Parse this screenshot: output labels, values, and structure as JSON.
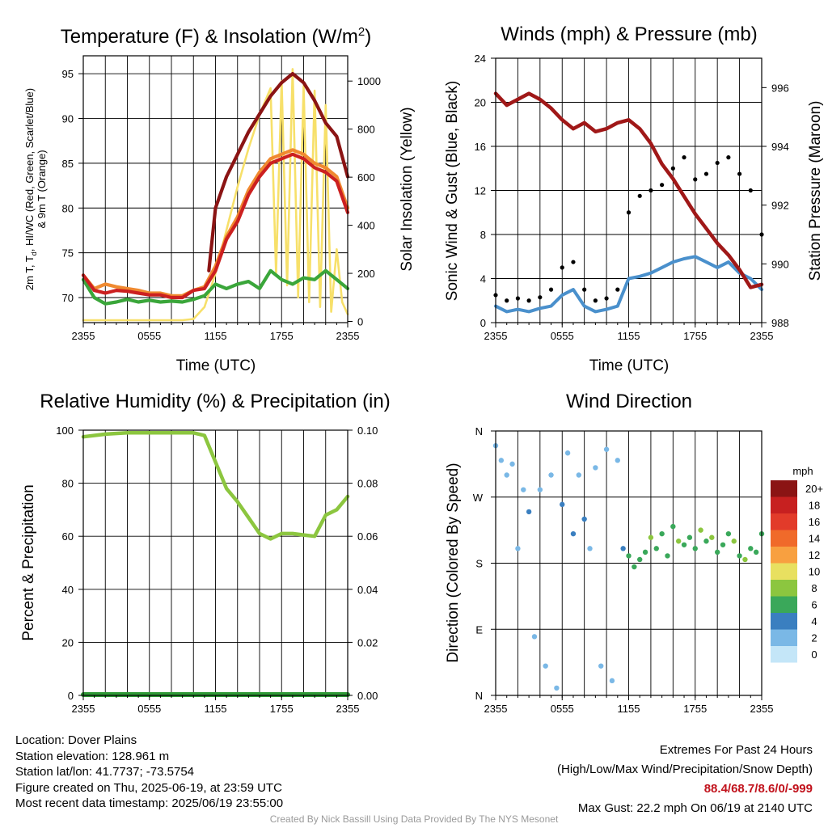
{
  "chart_data": [
    {
      "type": "line",
      "title": "Temperature (F) & Insolation (W/m²)",
      "xlabel": "Time (UTC)",
      "ylabel_left": "2m T, Td, HI/WC (Red, Green, Scarlet/Blue) & 9m T (Orange)",
      "ylabel_right": "Solar Insolation (Yellow)",
      "x_ticks": [
        "2355",
        "0555",
        "1155",
        "1755",
        "2355"
      ],
      "ylim_left": [
        67.2,
        97.0
      ],
      "yticks_left": [
        70,
        75,
        80,
        85,
        90,
        95
      ],
      "ylim_right": [
        -5,
        1105
      ],
      "yticks_right": [
        0,
        200,
        400,
        600,
        800,
        1000
      ],
      "grid": true,
      "series": [
        {
          "name": "2m T",
          "color": "#cc2020",
          "axis": "left",
          "x": [
            0,
            1,
            2,
            3,
            4,
            5,
            6,
            7,
            8,
            9,
            10,
            11,
            12,
            13,
            14,
            15,
            16,
            17,
            18,
            19,
            20,
            21,
            22,
            23,
            24
          ],
          "y": [
            72.5,
            70.8,
            70.5,
            70.8,
            70.7,
            70.5,
            70.3,
            70.3,
            70.0,
            70.0,
            70.8,
            71.0,
            73.0,
            76.5,
            78.5,
            81.5,
            83.5,
            85.0,
            85.5,
            86.0,
            85.5,
            84.5,
            84.0,
            83.0,
            79.5
          ]
        },
        {
          "name": "Td",
          "color": "#3aa63a",
          "axis": "left",
          "x": [
            0,
            1,
            2,
            3,
            4,
            5,
            6,
            7,
            8,
            9,
            10,
            11,
            12,
            13,
            14,
            15,
            16,
            17,
            18,
            19,
            20,
            21,
            22,
            23,
            24
          ],
          "y": [
            72.0,
            70.0,
            69.3,
            69.5,
            69.8,
            69.5,
            69.7,
            69.5,
            69.6,
            69.5,
            69.8,
            70.2,
            71.5,
            71.0,
            71.5,
            71.8,
            71.0,
            73.0,
            72.0,
            71.5,
            72.2,
            72.0,
            73.0,
            72.0,
            71.0
          ]
        },
        {
          "name": "HI/WC",
          "color": "#8b1414",
          "axis": "left",
          "x": [
            11.4,
            12,
            13,
            14,
            15,
            16,
            17,
            18,
            19,
            20,
            21,
            22,
            23,
            24
          ],
          "y": [
            73.0,
            80.0,
            83.5,
            86.0,
            88.5,
            90.5,
            92.5,
            94.0,
            95.0,
            94.0,
            92.0,
            89.5,
            88.0,
            83.5
          ]
        },
        {
          "name": "9m T",
          "color": "#f08a30",
          "axis": "left",
          "x": [
            0,
            1,
            2,
            3,
            4,
            5,
            6,
            7,
            8,
            9,
            10,
            11,
            12,
            13,
            14,
            15,
            16,
            17,
            18,
            19,
            20,
            21,
            22,
            23,
            24
          ],
          "y": [
            72.5,
            71.0,
            71.5,
            71.2,
            71.0,
            70.8,
            70.5,
            70.5,
            70.2,
            70.2,
            70.8,
            71.2,
            73.5,
            76.8,
            79.0,
            82.0,
            84.0,
            85.5,
            86.0,
            86.5,
            86.0,
            85.0,
            84.5,
            83.5,
            80.0
          ]
        },
        {
          "name": "Solar Insolation",
          "color": "#f7e06a",
          "axis": "right",
          "x": [
            0,
            2,
            4,
            6,
            8,
            9,
            10,
            11,
            12,
            13,
            14,
            15,
            16,
            17,
            17.5,
            18,
            18.5,
            19,
            19.5,
            20,
            20.5,
            21,
            21.5,
            22,
            22.5,
            23,
            23.5,
            24
          ],
          "y": [
            5,
            5,
            5,
            5,
            5,
            5,
            10,
            60,
            200,
            380,
            560,
            720,
            860,
            970,
            200,
            1000,
            150,
            1050,
            100,
            980,
            80,
            960,
            60,
            900,
            40,
            300,
            80,
            30
          ]
        }
      ]
    },
    {
      "type": "scatter",
      "title": "Winds (mph) & Pressure (mb)",
      "xlabel": "Time (UTC)",
      "ylabel_left": "Sonic Wind & Gust (Blue, Black)",
      "ylabel_right": "Station Pressure (Maroon)",
      "x_ticks": [
        "2355",
        "0555",
        "1155",
        "1755",
        "2355"
      ],
      "ylim_left": [
        0,
        24
      ],
      "yticks_left": [
        0,
        4,
        8,
        12,
        16,
        20,
        24
      ],
      "ylim_right": [
        988,
        997
      ],
      "yticks_right": [
        988,
        990,
        992,
        994,
        996
      ],
      "grid": true,
      "series": [
        {
          "name": "Sonic Wind",
          "color": "#4a90cc",
          "axis": "left",
          "x": [
            0,
            1,
            2,
            3,
            4,
            5,
            6,
            7,
            8,
            9,
            10,
            11,
            12,
            13,
            14,
            15,
            16,
            17,
            18,
            19,
            20,
            21,
            22,
            23,
            24
          ],
          "y": [
            1.5,
            1.0,
            1.2,
            1.0,
            1.3,
            1.5,
            2.5,
            3.0,
            1.5,
            1.0,
            1.2,
            1.5,
            4.0,
            4.2,
            4.5,
            5.0,
            5.5,
            5.8,
            6.0,
            5.5,
            5.0,
            5.5,
            4.5,
            4.0,
            3.0
          ]
        },
        {
          "name": "Gust",
          "color": "#000000",
          "axis": "left",
          "x": [
            0,
            1,
            2,
            3,
            4,
            5,
            6,
            7,
            8,
            9,
            10,
            11,
            12,
            13,
            14,
            15,
            16,
            17,
            18,
            19,
            20,
            21,
            22,
            23,
            24
          ],
          "y": [
            2.5,
            2.0,
            2.2,
            2.0,
            2.3,
            3.0,
            5.0,
            5.5,
            3.0,
            2.0,
            2.2,
            3.0,
            10.0,
            11.5,
            12.0,
            12.5,
            14.0,
            15.0,
            13.0,
            13.5,
            14.5,
            15.0,
            13.5,
            12.0,
            8.0
          ]
        },
        {
          "name": "Station Pressure",
          "color": "#a01818",
          "axis": "right",
          "x": [
            0,
            1,
            2,
            3,
            4,
            5,
            6,
            7,
            8,
            9,
            10,
            11,
            12,
            13,
            14,
            15,
            16,
            17,
            18,
            19,
            20,
            21,
            22,
            23,
            24
          ],
          "y": [
            995.8,
            995.4,
            995.6,
            995.8,
            995.6,
            995.3,
            994.9,
            994.6,
            994.8,
            994.5,
            994.6,
            994.8,
            994.9,
            994.6,
            994.1,
            993.4,
            992.9,
            992.3,
            991.7,
            991.2,
            990.7,
            990.3,
            989.8,
            989.2,
            989.3
          ]
        }
      ]
    },
    {
      "type": "line",
      "title": "Relative Humidity (%) & Precipitation (in)",
      "xlabel": "",
      "ylabel_left": "Percent & Precipitation",
      "x_ticks": [
        "2355",
        "0555",
        "1155",
        "1755",
        "2355"
      ],
      "ylim_left": [
        0,
        100
      ],
      "yticks_left": [
        0,
        20,
        40,
        60,
        80,
        100
      ],
      "ylim_right": [
        0,
        0.1
      ],
      "yticks_right": [
        "0.00",
        "0.02",
        "0.04",
        "0.06",
        "0.08",
        "0.10"
      ],
      "grid": true,
      "series": [
        {
          "name": "Relative Humidity",
          "color": "#8cc63f",
          "axis": "left",
          "x": [
            0,
            2,
            4,
            6,
            8,
            10,
            11,
            12,
            13,
            14,
            15,
            16,
            17,
            18,
            19,
            20,
            21,
            22,
            23,
            24
          ],
          "y": [
            97.5,
            98.5,
            99.0,
            99.0,
            99.0,
            99.0,
            98.0,
            88.0,
            78.0,
            73.0,
            67.0,
            61.0,
            59.0,
            61.0,
            61.0,
            60.5,
            60.0,
            68.0,
            70.0,
            75.0
          ]
        },
        {
          "name": "Precipitation",
          "color": "#2f9a36",
          "axis": "left",
          "x": [
            0,
            24
          ],
          "y": [
            0,
            0
          ]
        }
      ]
    },
    {
      "type": "scatter",
      "title": "Wind Direction",
      "xlabel": "",
      "ylabel_left": "Direction (Colored By Speed)",
      "x_ticks": [
        "2355",
        "0555",
        "1155",
        "1755",
        "2355"
      ],
      "y_ticks": [
        "N",
        "E",
        "S",
        "W",
        "N"
      ],
      "ylim_left": [
        0,
        360
      ],
      "grid": true,
      "colorbar": {
        "unit": "mph",
        "labels": [
          "20+",
          "18",
          "16",
          "14",
          "12",
          "10",
          "8",
          "6",
          "4",
          "2",
          "0"
        ],
        "colors": [
          "#8b1414",
          "#c72020",
          "#e23b2a",
          "#f06a2a",
          "#f8a040",
          "#e8e060",
          "#8cc63f",
          "#3aa85a",
          "#3a7fc0",
          "#7ab8e6",
          "#c4e6f8"
        ]
      },
      "series": [
        {
          "name": "Direction",
          "color": "#7ab8e6",
          "x": [
            0,
            0.5,
            1,
            1.5,
            2,
            2.5,
            3,
            3.5,
            4,
            4.5,
            5,
            5.5,
            6,
            6.5,
            7,
            7.5,
            8,
            8.5,
            9,
            9.5,
            10,
            10.5,
            11,
            11.5,
            12,
            12.5,
            13,
            13.5,
            14,
            14.5,
            15,
            15.5,
            16,
            16.5,
            17,
            17.5,
            18,
            18.5,
            19,
            19.5,
            20,
            20.5,
            21,
            21.5,
            22,
            22.5,
            23,
            23.5,
            24
          ],
          "y": [
            340,
            320,
            300,
            315,
            200,
            280,
            250,
            80,
            280,
            40,
            300,
            10,
            260,
            330,
            220,
            300,
            240,
            200,
            310,
            40,
            335,
            20,
            320,
            200,
            190,
            175,
            185,
            195,
            215,
            200,
            220,
            190,
            230,
            210,
            205,
            215,
            200,
            225,
            210,
            215,
            195,
            205,
            220,
            210,
            190,
            185,
            200,
            195,
            220
          ],
          "speed": [
            1,
            1,
            1,
            1,
            2,
            1,
            3,
            1,
            2,
            1,
            1,
            1,
            3,
            1,
            3,
            2,
            4,
            2,
            1,
            1,
            1,
            1,
            1,
            4,
            5,
            5,
            5,
            6,
            7,
            6,
            6,
            5,
            6,
            7,
            5,
            6,
            6,
            8,
            6,
            7,
            5,
            6,
            6,
            7,
            5,
            7,
            6,
            5,
            5
          ]
        }
      ]
    }
  ],
  "info": {
    "location": "Location: Dover Plains",
    "elevation": "Station elevation: 128.961 m",
    "latlon": "Station lat/lon: 41.7737; -73.5754",
    "created": "Figure created on Thu, 2025-06-19, at 23:59 UTC",
    "recent": "Most recent data timestamp: 2025/06/19 23:55:00",
    "extremes_title": "Extremes For Past 24 Hours",
    "extremes_sub": "(High/Low/Max Wind/Precipitation/Snow Depth)",
    "extremes_values": "88.4/68.7/8.6/0/-999",
    "max_gust": "Max Gust: 22.2 mph On 06/19 at 2140 UTC",
    "credit": "Created By Nick Bassill Using Data Provided By The NYS Mesonet"
  }
}
